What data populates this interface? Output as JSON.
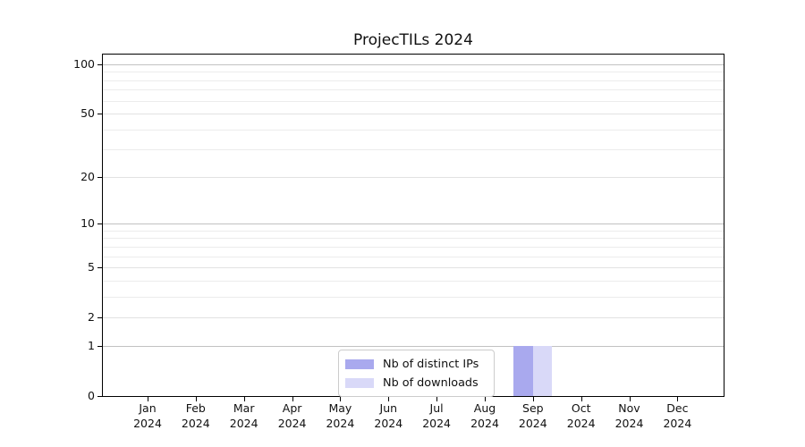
{
  "title": "ProjecTILs 2024",
  "chart_data": {
    "type": "bar",
    "title": "ProjecTILs 2024",
    "categories": [
      "Jan 2024",
      "Feb 2024",
      "Mar 2024",
      "Apr 2024",
      "May 2024",
      "Jun 2024",
      "Jul 2024",
      "Aug 2024",
      "Sep 2024",
      "Oct 2024",
      "Nov 2024",
      "Dec 2024"
    ],
    "x_months": [
      "Jan",
      "Feb",
      "Mar",
      "Apr",
      "May",
      "Jun",
      "Jul",
      "Aug",
      "Sep",
      "Oct",
      "Nov",
      "Dec"
    ],
    "x_year": "2024",
    "series": [
      {
        "name": "Nb of distinct IPs",
        "color": "#a9a9ee",
        "values": [
          0,
          0,
          0,
          0,
          0,
          0,
          0,
          0,
          1,
          0,
          0,
          0
        ]
      },
      {
        "name": "Nb of downloads",
        "color": "#d9d9f8",
        "values": [
          0,
          0,
          0,
          0,
          0,
          0,
          0,
          0,
          1,
          0,
          0,
          0
        ]
      }
    ],
    "xlabel": "",
    "ylabel": "",
    "yscale": "log1p",
    "ylim": [
      0,
      115
    ],
    "y_ticks": [
      0,
      1,
      2,
      5,
      10,
      20,
      50,
      100
    ],
    "y_minor_ticks": [
      3,
      4,
      6,
      7,
      8,
      9,
      30,
      40,
      60,
      70,
      80,
      90
    ],
    "grid": "both",
    "legend_position": "inside-bottom-center"
  },
  "colors": {
    "bar_distinct_ips": "#a9a9ee",
    "bar_downloads": "#d9d9f8",
    "grid_power10": "#c2c2c2",
    "grid_labeled": "#e2e2e2",
    "grid_minor": "#ececec",
    "spine": "#000000",
    "legend_border": "#cccccc"
  }
}
